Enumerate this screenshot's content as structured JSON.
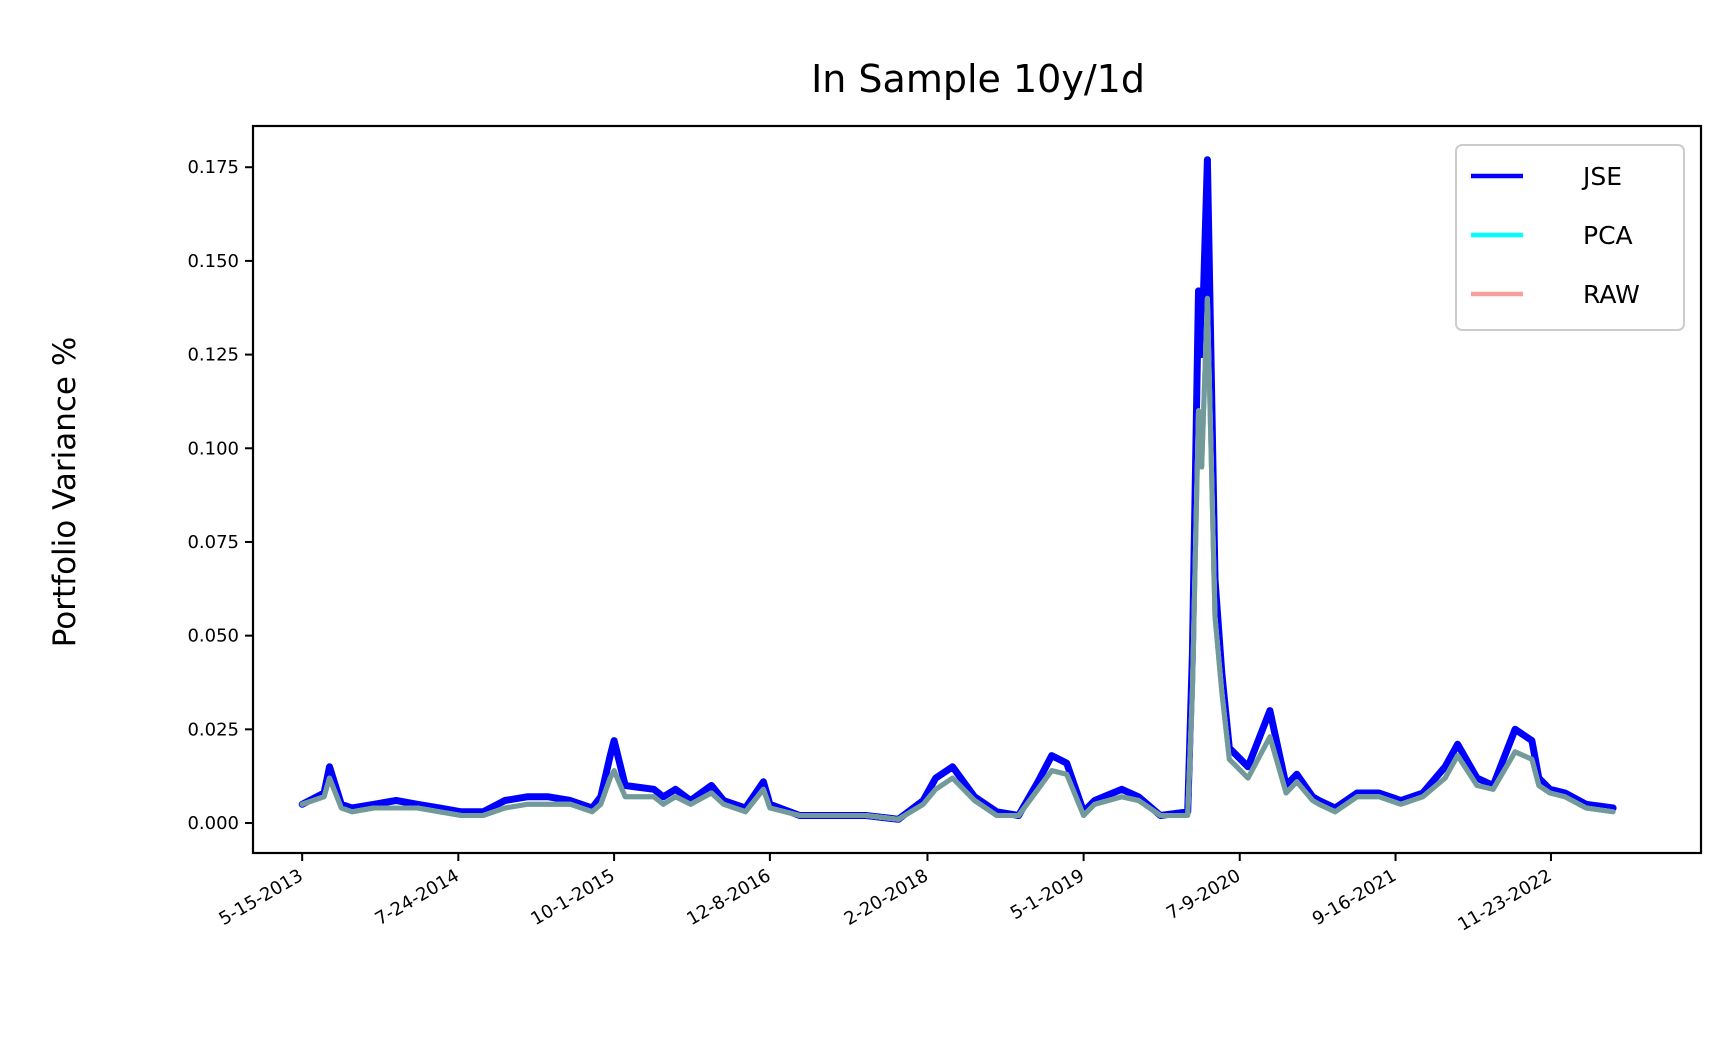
{
  "chart_data": {
    "type": "line",
    "title": "In Sample 10y/1d",
    "xlabel": "",
    "ylabel": "Portfolio Variance %",
    "x_ticks": [
      "5-15-2013",
      "7-24-2014",
      "10-1-2015",
      "12-8-2016",
      "2-20-2018",
      "5-1-2019",
      "7-9-2020",
      "9-16-2021",
      "11-23-2022"
    ],
    "y_ticks": [
      "0.000",
      "0.025",
      "0.050",
      "0.075",
      "0.100",
      "0.125",
      "0.150",
      "0.175"
    ],
    "ylim": [
      -0.008,
      0.186
    ],
    "xlim": [
      "2012-12-29",
      "2024-01-15"
    ],
    "grid": false,
    "legend_position": "top-right",
    "x": [
      "2013-05-15",
      "2013-07-15",
      "2013-07-30",
      "2013-09-01",
      "2013-10-01",
      "2013-12-01",
      "2014-02-01",
      "2014-04-01",
      "2014-06-01",
      "2014-08-01",
      "2014-10-01",
      "2014-12-01",
      "2015-02-01",
      "2015-04-01",
      "2015-06-01",
      "2015-08-01",
      "2015-08-25",
      "2015-09-20",
      "2015-10-01",
      "2015-11-01",
      "2016-01-20",
      "2016-02-15",
      "2016-03-20",
      "2016-05-01",
      "2016-06-28",
      "2016-08-01",
      "2016-10-01",
      "2016-11-20",
      "2016-12-08",
      "2017-03-01",
      "2017-06-01",
      "2017-09-01",
      "2017-12-01",
      "2018-02-08",
      "2018-03-15",
      "2018-05-01",
      "2018-07-01",
      "2018-09-01",
      "2018-11-01",
      "2018-12-25",
      "2019-02-01",
      "2019-03-15",
      "2019-05-01",
      "2019-06-01",
      "2019-08-15",
      "2019-10-01",
      "2019-12-01",
      "2020-02-15",
      "2020-02-28",
      "2020-03-16",
      "2020-03-25",
      "2020-04-10",
      "2020-05-01",
      "2020-05-20",
      "2020-06-10",
      "2020-07-01",
      "2020-08-01",
      "2020-10-01",
      "2020-11-15",
      "2020-12-15",
      "2021-01-28",
      "2021-02-15",
      "2021-04-01",
      "2021-06-01",
      "2021-08-01",
      "2021-10-01",
      "2021-12-01",
      "2022-02-01",
      "2022-03-08",
      "2022-05-01",
      "2022-06-15",
      "2022-08-15",
      "2022-10-01",
      "2022-10-20",
      "2022-11-20",
      "2023-01-01",
      "2023-03-01",
      "2023-05-15"
    ],
    "series": [
      {
        "name": "JSE",
        "color": "#0000ff",
        "values": [
          0.005,
          0.008,
          0.015,
          0.005,
          0.004,
          0.005,
          0.006,
          0.005,
          0.004,
          0.003,
          0.003,
          0.006,
          0.007,
          0.007,
          0.006,
          0.004,
          0.007,
          0.018,
          0.022,
          0.01,
          0.009,
          0.007,
          0.009,
          0.006,
          0.01,
          0.006,
          0.004,
          0.011,
          0.005,
          0.002,
          0.002,
          0.002,
          0.001,
          0.006,
          0.012,
          0.015,
          0.007,
          0.003,
          0.002,
          0.011,
          0.018,
          0.016,
          0.003,
          0.006,
          0.009,
          0.007,
          0.002,
          0.003,
          0.045,
          0.142,
          0.125,
          0.177,
          0.065,
          0.04,
          0.02,
          0.018,
          0.015,
          0.03,
          0.01,
          0.013,
          0.007,
          0.006,
          0.004,
          0.008,
          0.008,
          0.006,
          0.008,
          0.015,
          0.021,
          0.012,
          0.01,
          0.025,
          0.022,
          0.012,
          0.009,
          0.008,
          0.005,
          0.004
        ]
      },
      {
        "name": "PCA",
        "color": "#00ffff",
        "values": [
          0.005,
          0.007,
          0.012,
          0.004,
          0.003,
          0.004,
          0.004,
          0.004,
          0.003,
          0.002,
          0.002,
          0.004,
          0.005,
          0.005,
          0.005,
          0.003,
          0.005,
          0.012,
          0.014,
          0.007,
          0.007,
          0.005,
          0.007,
          0.005,
          0.008,
          0.005,
          0.003,
          0.009,
          0.004,
          0.002,
          0.002,
          0.002,
          0.001,
          0.005,
          0.009,
          0.012,
          0.006,
          0.002,
          0.002,
          0.009,
          0.014,
          0.013,
          0.002,
          0.005,
          0.007,
          0.006,
          0.002,
          0.002,
          0.035,
          0.11,
          0.095,
          0.14,
          0.055,
          0.035,
          0.017,
          0.015,
          0.012,
          0.023,
          0.008,
          0.011,
          0.006,
          0.005,
          0.003,
          0.007,
          0.007,
          0.005,
          0.007,
          0.012,
          0.018,
          0.01,
          0.009,
          0.019,
          0.017,
          0.01,
          0.008,
          0.007,
          0.004,
          0.003
        ]
      },
      {
        "name": "RAW",
        "color": "#f4a09c",
        "values": [
          0.005,
          0.007,
          0.012,
          0.004,
          0.003,
          0.004,
          0.004,
          0.004,
          0.003,
          0.002,
          0.002,
          0.004,
          0.005,
          0.005,
          0.005,
          0.003,
          0.005,
          0.012,
          0.014,
          0.007,
          0.007,
          0.005,
          0.007,
          0.005,
          0.008,
          0.005,
          0.003,
          0.009,
          0.004,
          0.002,
          0.002,
          0.002,
          0.001,
          0.005,
          0.009,
          0.012,
          0.006,
          0.002,
          0.002,
          0.009,
          0.014,
          0.013,
          0.002,
          0.005,
          0.007,
          0.006,
          0.002,
          0.002,
          0.035,
          0.11,
          0.095,
          0.14,
          0.055,
          0.035,
          0.017,
          0.015,
          0.012,
          0.023,
          0.008,
          0.011,
          0.006,
          0.005,
          0.003,
          0.007,
          0.007,
          0.005,
          0.007,
          0.012,
          0.018,
          0.01,
          0.009,
          0.019,
          0.017,
          0.01,
          0.008,
          0.007,
          0.004,
          0.003
        ]
      }
    ]
  }
}
